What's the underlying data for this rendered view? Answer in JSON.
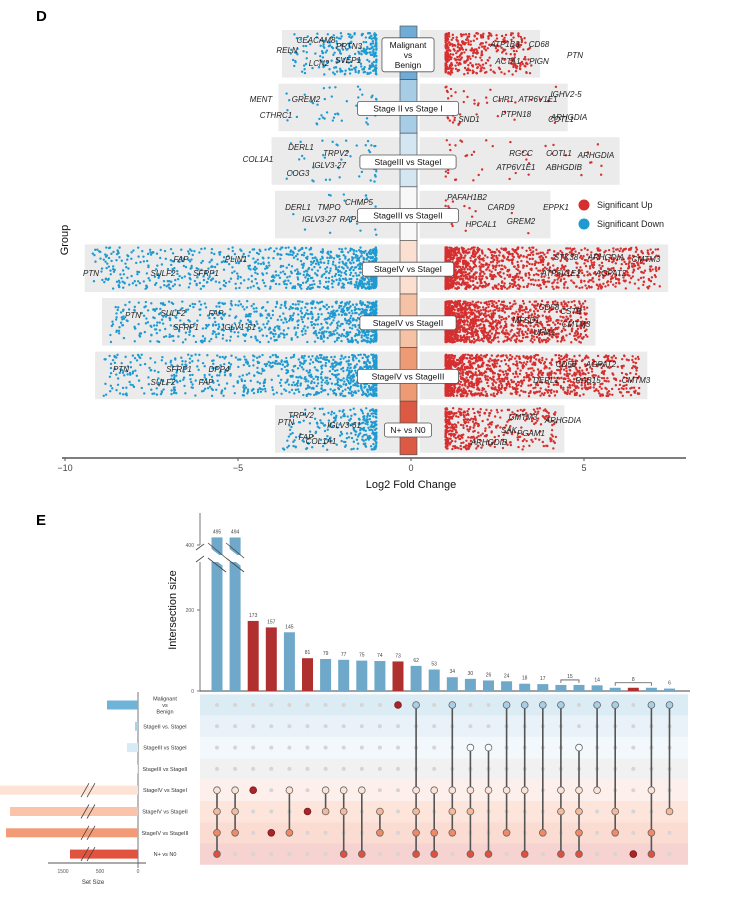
{
  "panels": {
    "d_label": "D",
    "e_label": "E"
  },
  "chart_data": [
    {
      "type": "scatter",
      "panel": "D",
      "title": "",
      "xlabel": "Log2 Fold Change",
      "ylabel": "Group",
      "xlim": [
        -10,
        8
      ],
      "xticks": [
        -10,
        -5,
        0,
        5
      ],
      "xtick_labels": [
        "−10",
        "−5",
        "0",
        "5"
      ],
      "legend": {
        "placement": "right",
        "entries": [
          {
            "label": "Significant Up",
            "color": "#d62f2f"
          },
          {
            "label": "Significant Down",
            "color": "#1f9ad1"
          }
        ]
      },
      "colorbar_colors": [
        "#6fadd6",
        "#a7cde6",
        "#d3e6f2",
        "#f8f8f8",
        "#fbe0d2",
        "#f6c2a6",
        "#ee9a74",
        "#dc5a43"
      ],
      "groups": [
        {
          "name": "Malignant vs Benign",
          "label_lines": [
            "Malignant",
            "vs",
            "Benign"
          ],
          "down_range": [
            -3.5,
            -1
          ],
          "up_range": [
            1,
            3.5
          ],
          "density": "medium",
          "down_genes": [
            "CEACAM8",
            "PRTN3",
            "RELN",
            "LCN2",
            "SVEP1"
          ],
          "up_genes": [
            "ATP1B3",
            "CD68",
            "PTN",
            "ACTA1",
            "PIGN"
          ]
        },
        {
          "name": "Stage II vs Stage I",
          "label_lines": [
            "Stage II vs Stage I"
          ],
          "down_range": [
            -3.6,
            -1
          ],
          "up_range": [
            1,
            4.3
          ],
          "density": "sparse",
          "down_genes": [
            "MENT",
            "GREM2",
            "CTHRC1"
          ],
          "up_genes": [
            "CHP1",
            "ATP6V1E1",
            "IGHV2-5",
            "ARHGDIA",
            "SND1",
            "PTPN18",
            "COTL1"
          ]
        },
        {
          "name": "StageIII vs StageI",
          "label_lines": [
            "StageIII vs StageI"
          ],
          "down_range": [
            -3.8,
            -1
          ],
          "up_range": [
            1,
            5.8
          ],
          "density": "sparse",
          "down_genes": [
            "DERL1",
            "TRPV2",
            "COL1A1",
            "IGLV3-27",
            "COG3"
          ],
          "up_genes": [
            "RGCC",
            "COTL1",
            "ARHGDIA",
            "ATP6V1E1",
            "ABHGDIB"
          ]
        },
        {
          "name": "StageIII vs StageII",
          "label_lines": [
            "StageIII vs StageII"
          ],
          "down_range": [
            -3.7,
            -1
          ],
          "up_range": [
            -0.5,
            3.8
          ],
          "density": "very-sparse",
          "down_genes": [
            "DERL1",
            "TMPO",
            "CHMP5",
            "IGLV3-27",
            "RAP2C"
          ],
          "up_genes": [
            "PAFAH1B2",
            "CARD9",
            "EPPK1",
            "GREM2",
            "HPCAL1"
          ]
        },
        {
          "name": "StageIV vs StageI",
          "label_lines": [
            "StageIV vs StageI"
          ],
          "down_range": [
            -9.2,
            -1
          ],
          "up_range": [
            1,
            7.2
          ],
          "density": "dense",
          "down_genes": [
            "FAP",
            "PLIN1",
            "PTN",
            "SULF2",
            "SFRP1"
          ],
          "up_genes": [
            "STK38",
            "ARHGDIA",
            "CMTM3",
            "ATP6V1E1",
            "AGPAT2"
          ]
        },
        {
          "name": "StageIV vs StageII",
          "label_lines": [
            "StageIV vs StageII"
          ],
          "down_range": [
            -8.7,
            -1
          ],
          "up_range": [
            1,
            5.1
          ],
          "density": "dense",
          "down_genes": [
            "PTN",
            "SULF2",
            "FAP",
            "SFRP1",
            "IGLV1-51"
          ],
          "up_genes": [
            "CD58",
            "CSTB",
            "MFSD1",
            "CMTM3",
            "UFM1"
          ]
        },
        {
          "name": "StageIV vs StageIII",
          "label_lines": [
            "StageIV vs StageIII"
          ],
          "down_range": [
            -8.9,
            -1
          ],
          "up_range": [
            1,
            6.6
          ],
          "density": "dense",
          "down_genes": [
            "PTN",
            "SFRP1",
            "DPP4",
            "SULF2",
            "FAP"
          ],
          "up_genes": [
            "CD58",
            "AGPAT2",
            "DERL1",
            "RAB15",
            "CMTM3"
          ]
        },
        {
          "name": "N+ vs N0",
          "label_lines": [
            "N+ vs N0"
          ],
          "down_range": [
            -3.7,
            -1
          ],
          "up_range": [
            1,
            4.2
          ],
          "density": "medium",
          "down_genes": [
            "PTN",
            "TRPV2",
            "IGLV3-61",
            "FAP",
            "COL1A1"
          ],
          "up_genes": [
            "CMTM3",
            "ARHGDIA",
            "SAK",
            "PGAM1",
            "ARHGDIB"
          ]
        }
      ]
    },
    {
      "type": "bar",
      "panel": "E",
      "subtype": "upset",
      "ylabel": "Intersection size",
      "yticks": [
        0,
        200,
        400
      ],
      "axis_break": true,
      "intersection_sizes": [
        495,
        494,
        173,
        157,
        145,
        81,
        79,
        77,
        75,
        74,
        73,
        62,
        53,
        34,
        30,
        26,
        24,
        18,
        17,
        15,
        15,
        14,
        8,
        8,
        8,
        6
      ],
      "highlight": [
        false,
        false,
        true,
        true,
        false,
        true,
        false,
        false,
        false,
        false,
        true,
        false,
        false,
        false,
        false,
        false,
        false,
        false,
        false,
        false,
        false,
        false,
        false,
        true,
        false,
        false
      ],
      "bracket_groups": [
        {
          "label": "15",
          "columns": [
            19,
            20
          ]
        },
        {
          "label": "8",
          "columns": [
            22,
            24
          ]
        }
      ],
      "sets": [
        "Malignant vs Benign",
        "StageII vs. StageI",
        "StageIII vs StageI",
        "StageIII vs StageII",
        "StageIV vs StageI",
        "StageIV vs StageII",
        "StageIV vs StageIII",
        "N+ vs N0"
      ],
      "set_name_lines": [
        [
          "Malignant",
          "vs",
          "Benign"
        ],
        [
          "StageII vs. StageI"
        ],
        [
          "StageIII vs StageI"
        ],
        [
          "StageIII vs StageII"
        ],
        [
          "StageIV vs StageI"
        ],
        [
          "StageIV vs StageII"
        ],
        [
          "StageIV vs StageIII"
        ],
        [
          "N+ vs N0"
        ]
      ],
      "set_sizes": [
        310,
        30,
        110,
        10,
        1600,
        1450,
        1500,
        700
      ],
      "set_colors": [
        "#6fb3d8",
        "#a8d0e8",
        "#d6ebf5",
        "#eeeeee",
        "#fde3d6",
        "#fbc4aa",
        "#f39a76",
        "#e2533f"
      ],
      "set_size_xlabel": "Set Size",
      "set_size_ticks": [
        "1500",
        "500",
        "0"
      ],
      "memberships": [
        [
          4,
          5,
          6,
          7
        ],
        [
          4,
          5,
          6
        ],
        [
          4
        ],
        [
          6
        ],
        [
          4,
          6
        ],
        [
          5
        ],
        [
          4,
          5
        ],
        [
          4,
          5,
          7
        ],
        [
          4,
          7
        ],
        [
          5,
          6
        ],
        [
          0
        ],
        [
          0,
          4,
          5,
          6,
          7
        ],
        [
          4,
          6,
          7
        ],
        [
          0,
          4,
          5,
          6
        ],
        [
          2,
          4,
          5,
          7
        ],
        [
          2,
          4,
          7
        ],
        [
          0,
          4,
          6
        ],
        [
          0,
          4,
          7
        ],
        [
          0,
          6
        ],
        [
          0,
          4,
          5,
          7
        ],
        [
          2,
          4,
          5,
          6,
          7
        ],
        [
          0,
          4
        ],
        [
          0,
          5,
          6
        ],
        [
          7
        ],
        [
          0,
          4,
          6,
          7
        ],
        [
          0,
          5
        ]
      ],
      "bar_color": "#6fa8c8",
      "highlight_color": "#b03030"
    }
  ]
}
